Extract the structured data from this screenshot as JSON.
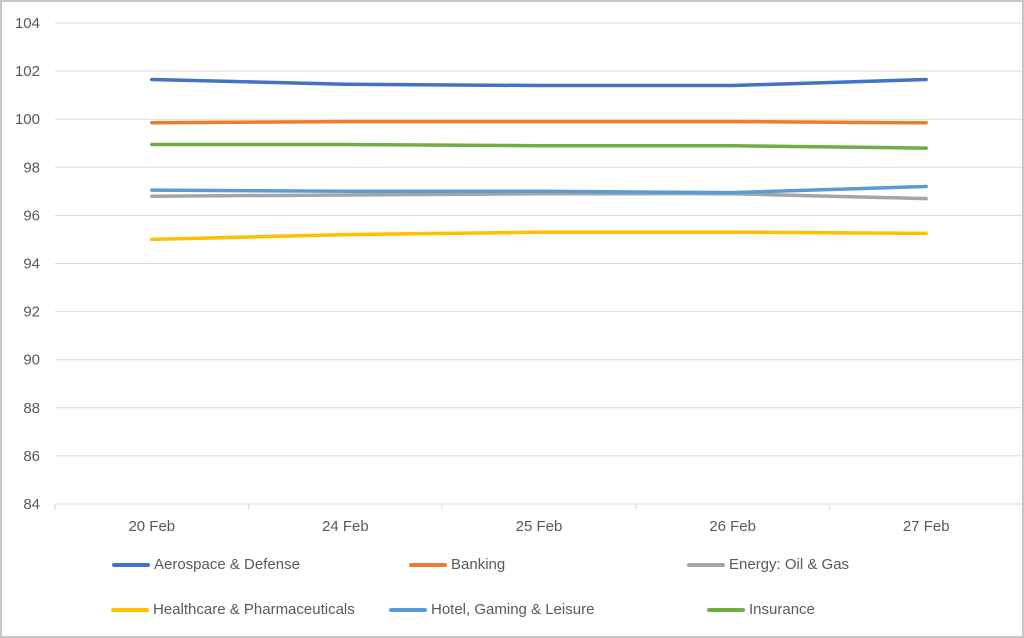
{
  "chart_data": {
    "type": "line",
    "title": "",
    "xlabel": "",
    "ylabel": "",
    "categories": [
      "20 Feb",
      "24 Feb",
      "25 Feb",
      "26 Feb",
      "27 Feb"
    ],
    "series": [
      {
        "name": "Aerospace & Defense",
        "color": "#4472C4",
        "values": [
          101.65,
          101.45,
          101.4,
          101.4,
          101.65
        ]
      },
      {
        "name": "Banking",
        "color": "#ED7D31",
        "values": [
          99.85,
          99.9,
          99.9,
          99.9,
          99.85
        ]
      },
      {
        "name": "Energy: Oil & Gas",
        "color": "#A5A5A5",
        "values": [
          96.8,
          96.85,
          96.9,
          96.9,
          96.7
        ]
      },
      {
        "name": "Healthcare & Pharmaceuticals",
        "color": "#FFC000",
        "values": [
          95.0,
          95.2,
          95.3,
          95.3,
          95.25
        ]
      },
      {
        "name": "Hotel, Gaming & Leisure",
        "color": "#5B9BD5",
        "values": [
          97.05,
          97.0,
          97.0,
          96.95,
          97.2
        ]
      },
      {
        "name": "Insurance",
        "color": "#70AD47",
        "values": [
          98.95,
          98.95,
          98.9,
          98.9,
          98.8
        ]
      }
    ],
    "ylim": [
      84,
      104
    ],
    "y_step": 2,
    "y_tick_labels": [
      "84",
      "86",
      "88",
      "90",
      "92",
      "94",
      "96",
      "98",
      "100",
      "102",
      "104"
    ],
    "grid": true,
    "gridline_color": "#D9D9D9",
    "axis_text_color": "#595959",
    "legend_text_color": "#595959",
    "legend_position": "bottom"
  }
}
